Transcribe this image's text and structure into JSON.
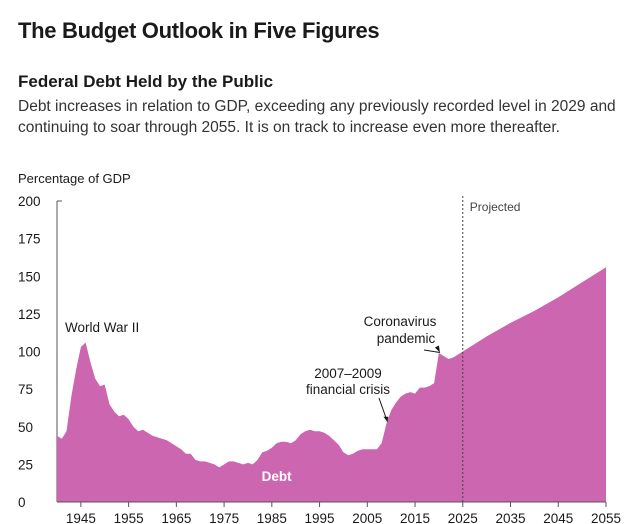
{
  "page": {
    "title": "The Budget Outlook in Five Figures",
    "subtitle": "Federal Debt Held by the Public",
    "description": "Debt increases in relation to GDP, exceeding any previously recorded level in 2029 and continuing to soar through 2055. It is on track to increase even more thereafter."
  },
  "colors": {
    "area": "#cc66b0",
    "axis": "#555555",
    "text": "#1a1a1a",
    "projected_line": "#444444"
  },
  "chart_data": {
    "type": "area",
    "title": "Federal Debt Held by the Public",
    "ylabel": "Percentage of GDP",
    "xlabel": "",
    "xlim": [
      1940,
      2055
    ],
    "ylim": [
      0,
      200
    ],
    "y_ticks": [
      0,
      25,
      50,
      75,
      100,
      125,
      150,
      175,
      200
    ],
    "x_ticks": [
      1945,
      1955,
      1965,
      1975,
      1985,
      1995,
      2005,
      2015,
      2025,
      2035,
      2045,
      2055
    ],
    "projected_start": 2025,
    "projected_label": "Projected",
    "series_label": "Debt",
    "annotations": [
      {
        "text": [
          "World War II"
        ],
        "x": 1946,
        "y": 106
      },
      {
        "text": [
          "2007–2009",
          "financial crisis"
        ],
        "x": 2009,
        "y": 52
      },
      {
        "text": [
          "Coronavirus",
          "pandemic"
        ],
        "x": 2020,
        "y": 98
      }
    ],
    "series": [
      {
        "name": "Debt",
        "x": [
          1940,
          1941,
          1942,
          1943,
          1944,
          1945,
          1946,
          1947,
          1948,
          1949,
          1950,
          1951,
          1952,
          1953,
          1954,
          1955,
          1956,
          1957,
          1958,
          1959,
          1960,
          1961,
          1962,
          1963,
          1964,
          1965,
          1966,
          1967,
          1968,
          1969,
          1970,
          1971,
          1972,
          1973,
          1974,
          1975,
          1976,
          1977,
          1978,
          1979,
          1980,
          1981,
          1982,
          1983,
          1984,
          1985,
          1986,
          1987,
          1988,
          1989,
          1990,
          1991,
          1992,
          1993,
          1994,
          1995,
          1996,
          1997,
          1998,
          1999,
          2000,
          2001,
          2002,
          2003,
          2004,
          2005,
          2006,
          2007,
          2008,
          2009,
          2010,
          2011,
          2012,
          2013,
          2014,
          2015,
          2016,
          2017,
          2018,
          2019,
          2020,
          2021,
          2022,
          2023,
          2024,
          2025,
          2030,
          2035,
          2040,
          2045,
          2050,
          2055
        ],
        "values": [
          44,
          42,
          47,
          70,
          88,
          103,
          106,
          93,
          82,
          77,
          78,
          65,
          60,
          57,
          58,
          55,
          50,
          47,
          48,
          46,
          44,
          43,
          42,
          41,
          39,
          37,
          35,
          32,
          32,
          28,
          27,
          27,
          26,
          25,
          23,
          25,
          27,
          27,
          26,
          25,
          26,
          25,
          28,
          33,
          34,
          36,
          39,
          40,
          40,
          39,
          41,
          45,
          47,
          48,
          47,
          47,
          46,
          44,
          41,
          38,
          33,
          31,
          32,
          34,
          35,
          35,
          35,
          35,
          39,
          52,
          61,
          66,
          70,
          72,
          73,
          72,
          76,
          76,
          77,
          79,
          99,
          97,
          95,
          96,
          98,
          100,
          110,
          119,
          127,
          136,
          146,
          156
        ]
      }
    ]
  }
}
